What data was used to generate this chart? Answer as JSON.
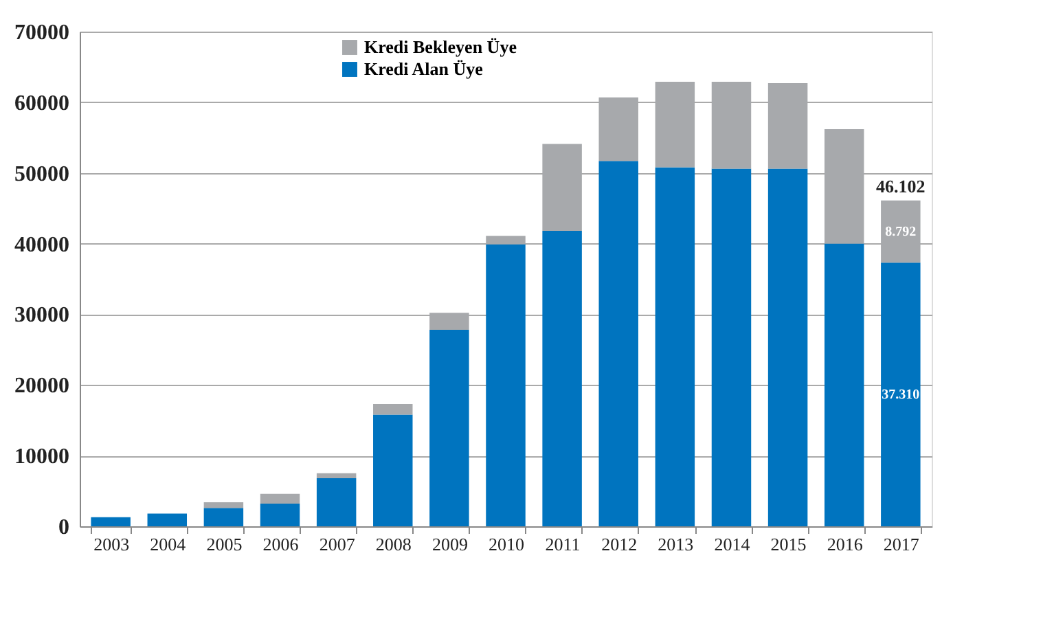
{
  "chart_data": {
    "type": "bar",
    "stacked": true,
    "categories": [
      "2003",
      "2004",
      "2005",
      "2006",
      "2007",
      "2008",
      "2009",
      "2010",
      "2011",
      "2012",
      "2013",
      "2014",
      "2015",
      "2016",
      "2017"
    ],
    "series": [
      {
        "name": "Kredi Alan Üye",
        "color": "#0074bf",
        "values": [
          1300,
          1800,
          2600,
          3200,
          6800,
          15800,
          27800,
          39900,
          41800,
          51700,
          50800,
          50600,
          50600,
          40000,
          37310
        ],
        "value_labels": [
          null,
          null,
          null,
          null,
          null,
          null,
          null,
          null,
          null,
          null,
          null,
          null,
          null,
          null,
          "37.310"
        ]
      },
      {
        "name": "Kredi Bekleyen Üye",
        "color": "#a7a9ac",
        "values": [
          0,
          0,
          800,
          1400,
          700,
          1500,
          2400,
          1200,
          12300,
          9000,
          12100,
          12300,
          12100,
          16200,
          8792
        ],
        "value_labels": [
          null,
          null,
          null,
          null,
          null,
          null,
          null,
          null,
          null,
          null,
          null,
          null,
          null,
          null,
          "8.792"
        ]
      }
    ],
    "totals": [
      null,
      null,
      null,
      null,
      null,
      null,
      null,
      null,
      null,
      null,
      null,
      null,
      null,
      null,
      "46.102"
    ],
    "ylim": [
      0,
      70000
    ],
    "yticks": [
      0,
      10000,
      20000,
      30000,
      40000,
      50000,
      60000,
      70000
    ],
    "grid": "y",
    "legend": "top left"
  }
}
